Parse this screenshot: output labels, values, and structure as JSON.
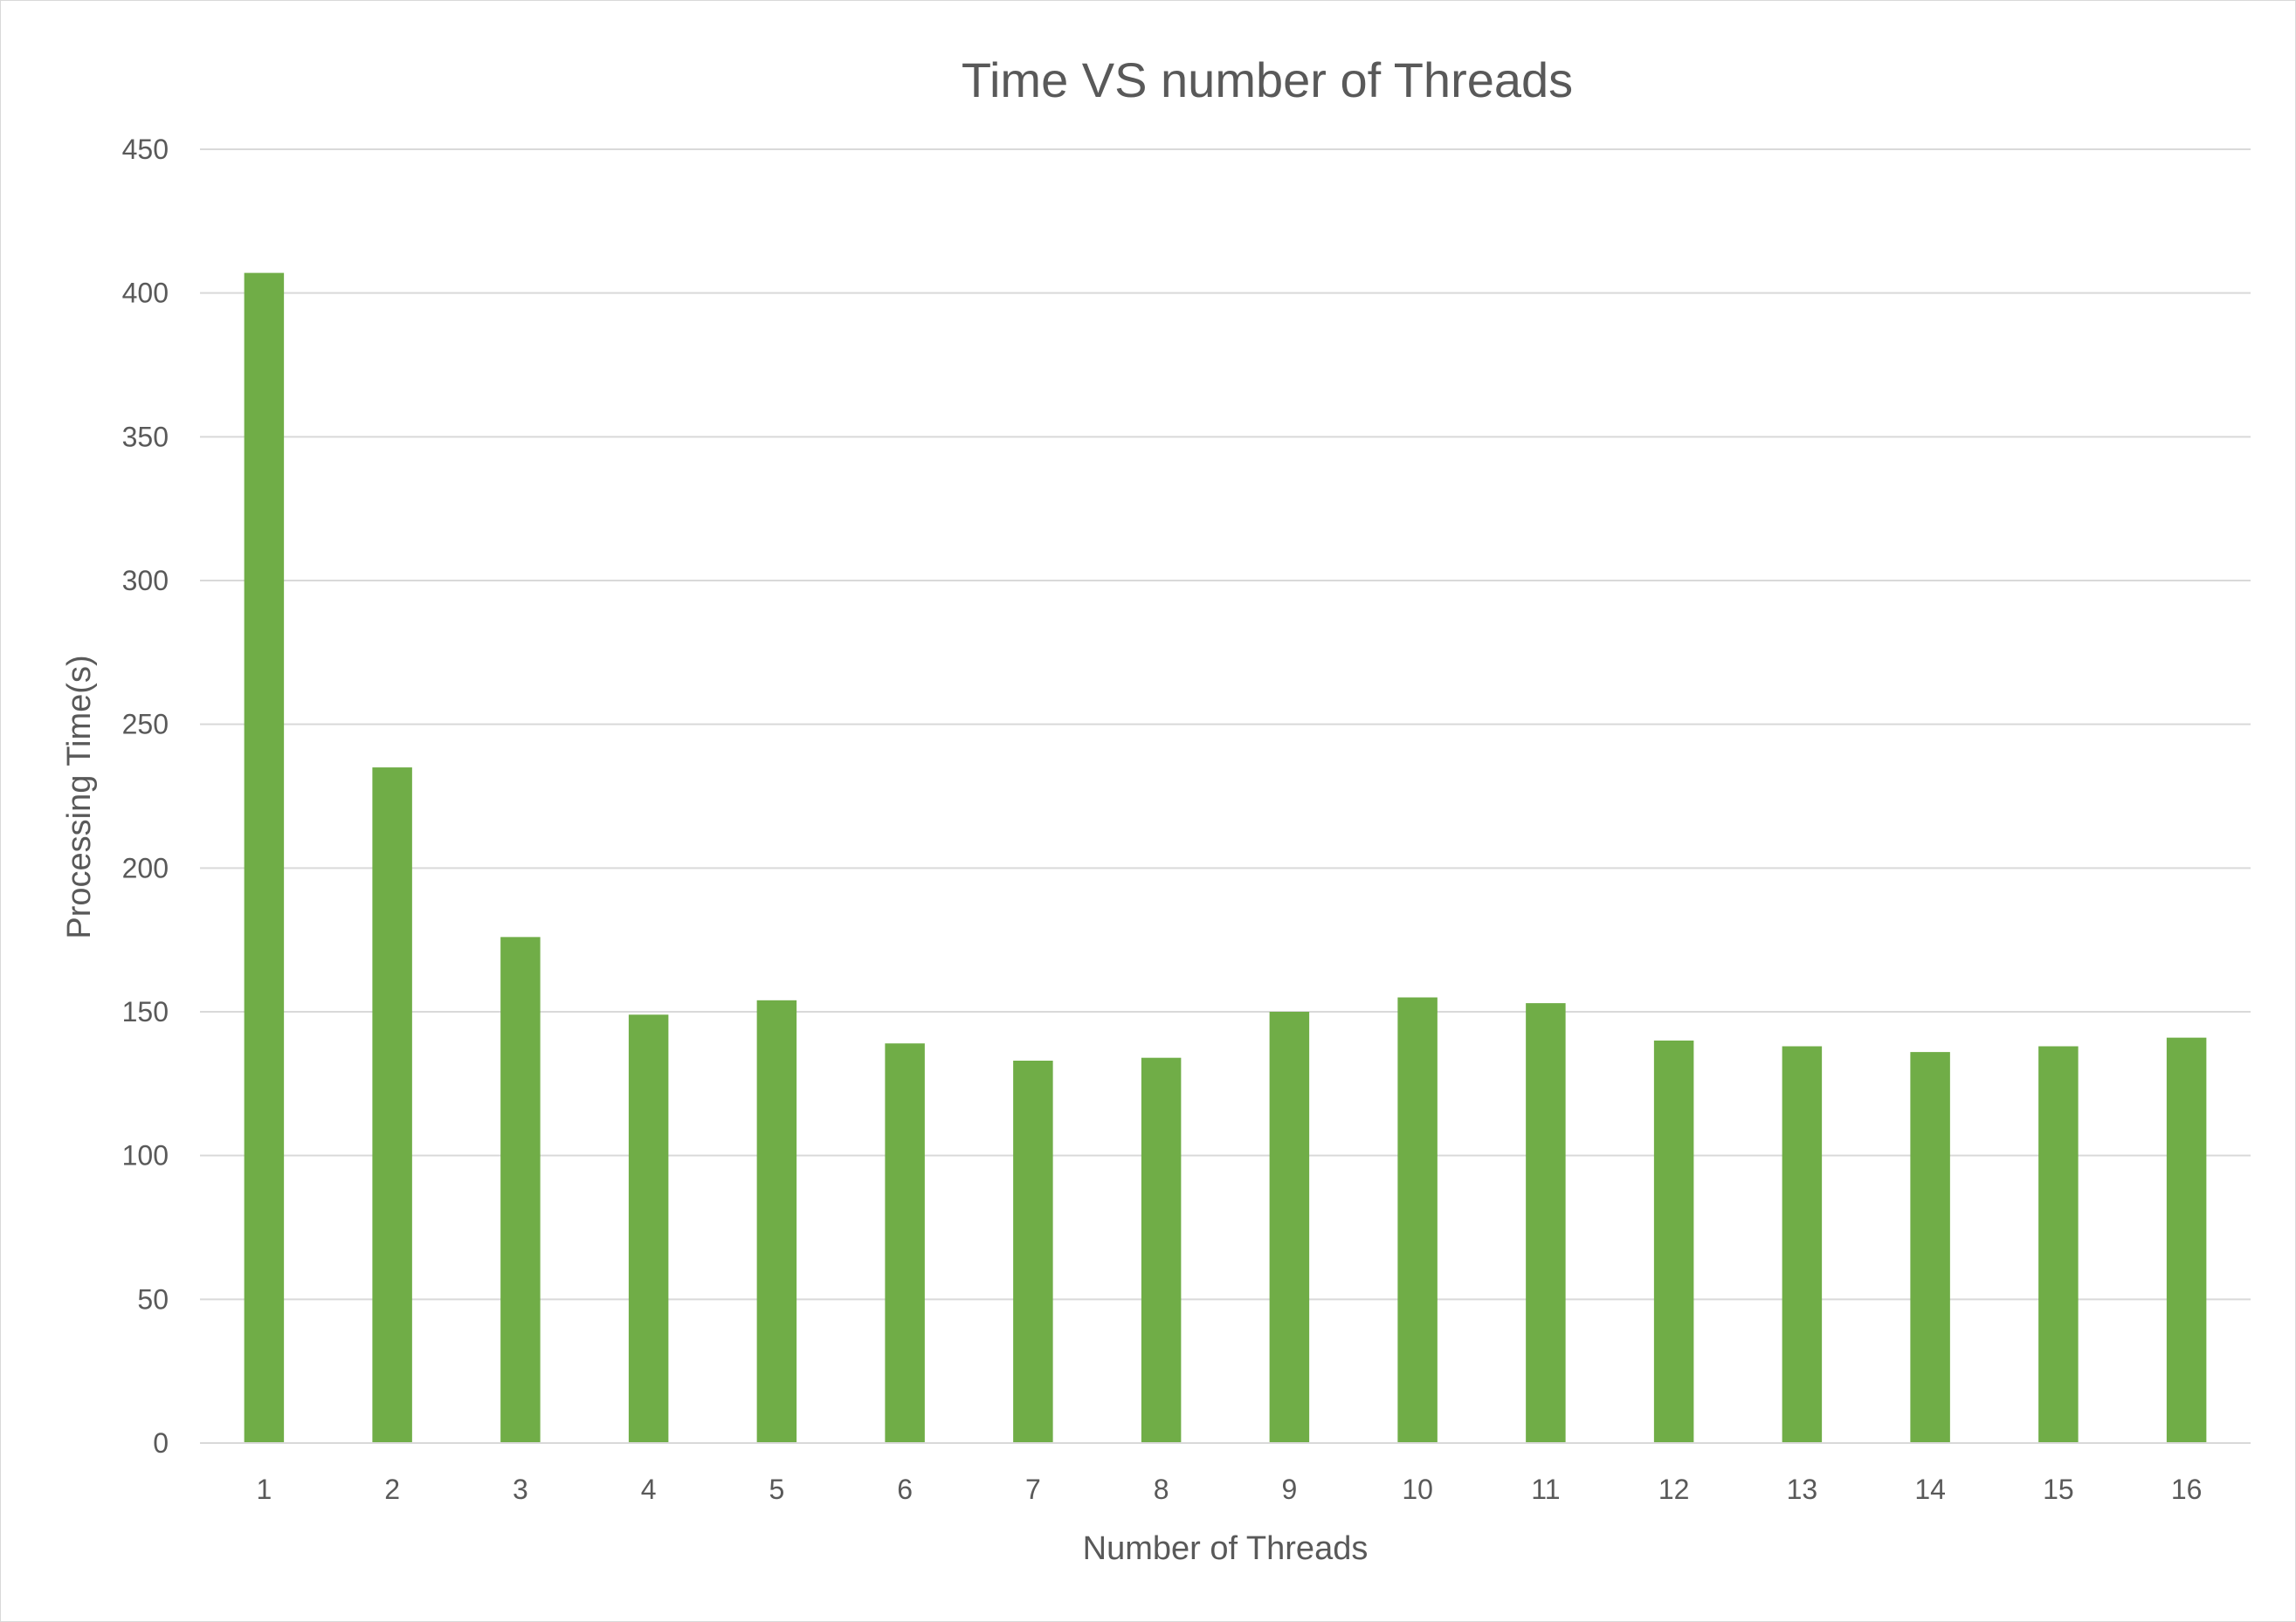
{
  "chart_data": {
    "type": "bar",
    "title": "Time VS number of Threads",
    "xlabel": "Number of Threads",
    "ylabel": "Processing Time(s)",
    "categories": [
      "1",
      "2",
      "3",
      "4",
      "5",
      "6",
      "7",
      "8",
      "9",
      "10",
      "11",
      "12",
      "13",
      "14",
      "15",
      "16"
    ],
    "values": [
      407,
      235,
      176,
      149,
      154,
      139,
      133,
      134,
      150,
      155,
      153,
      140,
      138,
      136,
      138,
      141
    ],
    "ylim": [
      0,
      450
    ],
    "yticks": [
      0,
      50,
      100,
      150,
      200,
      250,
      300,
      350,
      400,
      450
    ],
    "grid": true,
    "legend": "none",
    "colors": {
      "bar": "#70ad47",
      "grid": "#d9d9d9",
      "text": "#595959"
    }
  }
}
